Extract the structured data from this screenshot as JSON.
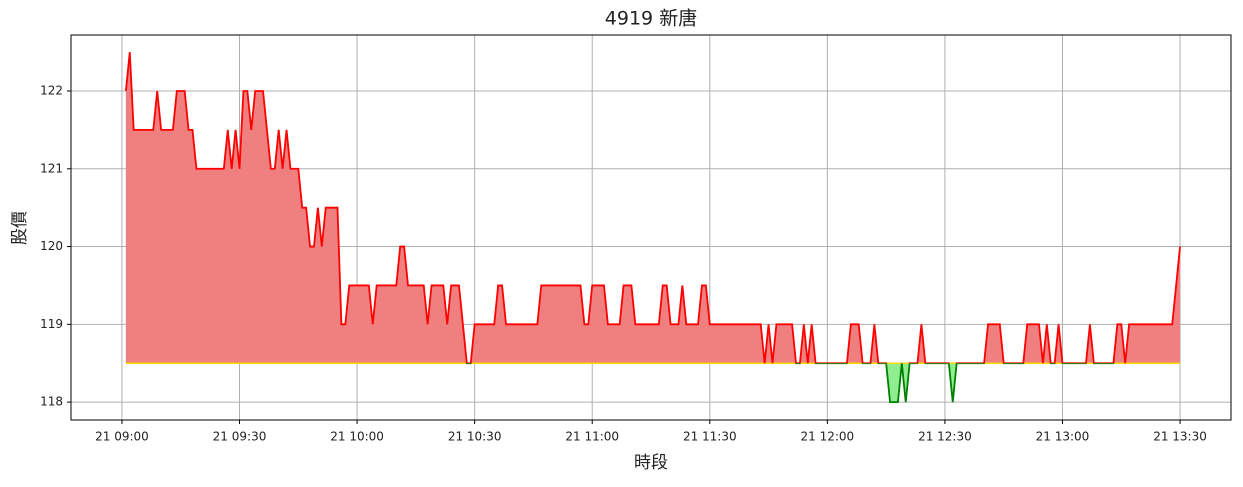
{
  "chart_data": {
    "type": "line",
    "title": "4919 新唐",
    "xlabel": "時段",
    "ylabel": "股價",
    "x": [
      "21 09:01",
      "21 09:02",
      "21 09:03",
      "21 09:08",
      "21 09:09",
      "21 09:10",
      "21 09:13",
      "21 09:14",
      "21 09:16",
      "21 09:17",
      "21 09:18",
      "21 09:19",
      "21 09:26",
      "21 09:27",
      "21 09:28",
      "21 09:29",
      "21 09:30",
      "21 09:31",
      "21 09:32",
      "21 09:33",
      "21 09:34",
      "21 09:36",
      "21 09:37",
      "21 09:38",
      "21 09:39",
      "21 09:40",
      "21 09:41",
      "21 09:42",
      "21 09:43",
      "21 09:45",
      "21 09:46",
      "21 09:47",
      "21 09:48",
      "21 09:49",
      "21 09:50",
      "21 09:51",
      "21 09:52",
      "21 09:55",
      "21 09:56",
      "21 09:57",
      "21 09:58",
      "21 10:03",
      "21 10:04",
      "21 10:05",
      "21 10:10",
      "21 10:11",
      "21 10:12",
      "21 10:13",
      "21 10:17",
      "21 10:18",
      "21 10:19",
      "21 10:22",
      "21 10:23",
      "21 10:24",
      "21 10:26",
      "21 10:28",
      "21 10:29",
      "21 10:30",
      "21 10:35",
      "21 10:36",
      "21 10:37",
      "21 10:38",
      "21 10:46",
      "21 10:47",
      "21 10:57",
      "21 10:58",
      "21 10:59",
      "21 11:00",
      "21 11:03",
      "21 11:04",
      "21 11:07",
      "21 11:08",
      "21 11:10",
      "21 11:11",
      "21 11:17",
      "21 11:18",
      "21 11:19",
      "21 11:20",
      "21 11:22",
      "21 11:23",
      "21 11:24",
      "21 11:27",
      "21 11:28",
      "21 11:29",
      "21 11:30",
      "21 11:43",
      "21 11:44",
      "21 11:45",
      "21 11:46",
      "21 11:47",
      "21 11:51",
      "21 11:52",
      "21 11:53",
      "21 11:54",
      "21 11:55",
      "21 11:56",
      "21 11:57",
      "21 12:05",
      "21 12:06",
      "21 12:08",
      "21 12:09",
      "21 12:11",
      "21 12:12",
      "21 12:13",
      "21 12:15",
      "21 12:16",
      "21 12:18",
      "21 12:19",
      "21 12:20",
      "21 12:21",
      "21 12:23",
      "21 12:24",
      "21 12:25",
      "21 12:31",
      "21 12:32",
      "21 12:33",
      "21 12:40",
      "21 12:41",
      "21 12:44",
      "21 12:45",
      "21 12:50",
      "21 12:51",
      "21 12:54",
      "21 12:55",
      "21 12:56",
      "21 12:57",
      "21 12:58",
      "21 12:59",
      "21 13:00",
      "21 13:06",
      "21 13:07",
      "21 13:08",
      "21 13:13",
      "21 13:14",
      "21 13:15",
      "21 13:16",
      "21 13:17",
      "21 13:28",
      "21 13:30"
    ],
    "series": [
      {
        "name": "股價",
        "color": "#ff0000",
        "values": [
          122,
          122.5,
          121.5,
          121.5,
          122,
          121.5,
          121.5,
          122,
          122,
          121.5,
          121.5,
          121,
          121,
          121.5,
          121,
          121.5,
          121,
          122,
          122,
          121.5,
          122,
          122,
          121.5,
          121,
          121,
          121.5,
          121,
          121.5,
          121,
          121,
          120.5,
          120.5,
          120,
          120,
          120.5,
          120,
          120.5,
          120.5,
          119,
          119,
          119.5,
          119.5,
          119,
          119.5,
          119.5,
          120,
          120,
          119.5,
          119.5,
          119,
          119.5,
          119.5,
          119,
          119.5,
          119.5,
          118.5,
          118.5,
          119,
          119,
          119.5,
          119.5,
          119,
          119,
          119.5,
          119.5,
          119,
          119,
          119.5,
          119.5,
          119,
          119,
          119.5,
          119.5,
          119,
          119,
          119.5,
          119.5,
          119,
          119,
          119.5,
          119,
          119,
          119.5,
          119.5,
          119,
          119,
          118.5,
          119,
          118.5,
          119,
          119,
          118.5,
          118.5,
          119,
          118.5,
          119,
          118.5,
          118.5,
          119,
          119,
          118.5,
          118.5,
          119,
          118.5,
          118.5,
          118,
          118,
          118.5,
          118,
          118.5,
          118.5,
          119,
          118.5,
          118.5,
          118,
          118.5,
          118.5,
          119,
          119,
          118.5,
          118.5,
          119,
          119,
          118.5,
          119,
          118.5,
          118.5,
          119,
          118.5,
          118.5,
          119,
          118.5,
          118.5,
          119,
          119,
          118.5,
          119,
          119,
          120
        ]
      }
    ],
    "baseline": 118.5,
    "above_fill": "#f08080",
    "below_fill": "#90ee90",
    "below_color": "#008000",
    "baseline_color": "#ffd700",
    "xlim": [
      "21 08:47",
      "21 13:43"
    ],
    "xticks": [
      "21 09:00",
      "21 09:30",
      "21 10:00",
      "21 10:30",
      "21 11:00",
      "21 11:30",
      "21 12:00",
      "21 12:30",
      "21 13:00",
      "21 13:30"
    ],
    "ylim": [
      117.77,
      122.72
    ],
    "yticks": [
      118,
      119,
      120,
      121,
      122
    ],
    "grid": true
  }
}
